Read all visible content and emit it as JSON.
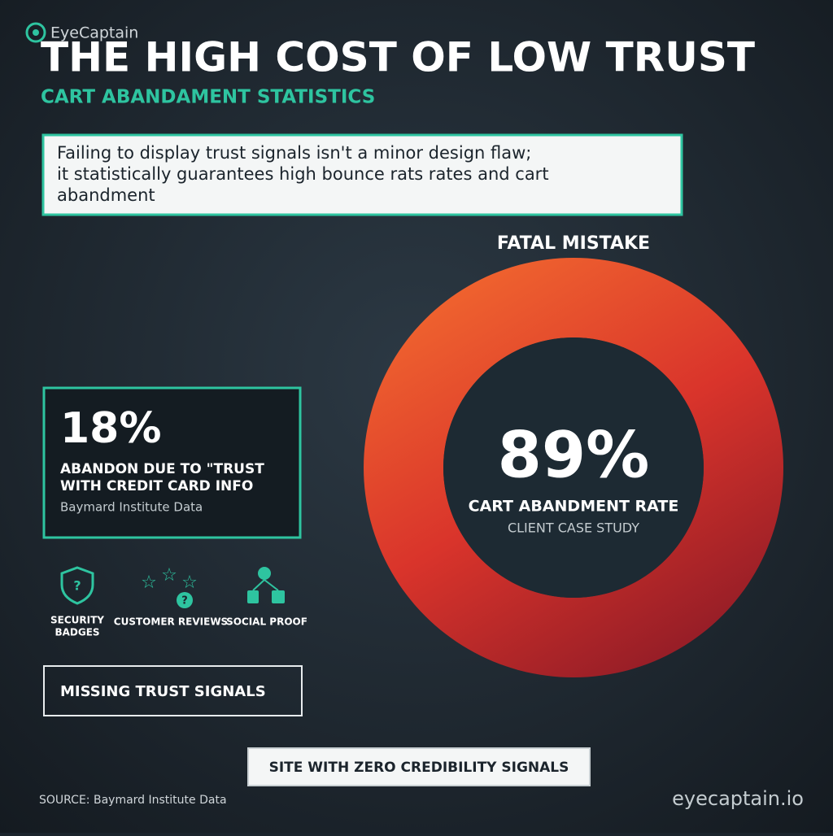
{
  "logo": "EyeCaptain",
  "header": {
    "title": "THE HIGH COST OF LOW TRUST",
    "subtitle": "CART ABANDAMENT STATISTICS"
  },
  "quote": {
    "lines": [
      "Failing to display trust signals isn't a minor design flaw;",
      "it statistically guarantees high bounce rats rates and cart",
      "abandment"
    ]
  },
  "donut": {
    "heading": "FATAL MISTAKE",
    "value": "89%",
    "label": "CART ABANDMENT RATE",
    "note": "CLIENT CASE STUDY"
  },
  "stat": {
    "value": "18%",
    "lines": [
      "ABANDON DUE TO \"TRUST",
      "WITH CREDIT CARD INFO"
    ],
    "source": "Baymard Institute Data"
  },
  "icons": [
    {
      "lines": [
        "SECURITY",
        "BADGES"
      ]
    },
    {
      "lines": [
        "CUSTOMER REVIEWS"
      ]
    },
    {
      "lines": [
        "SOCIAL PROOF"
      ]
    }
  ],
  "missing": "MISSING TRUST SIGNALS",
  "site": "SITE WITH ZERO CREDIBILITY SIGNALS",
  "footer": {
    "source": "SOURCE: Baymard Institute Data",
    "domain": "eyecaptain.io"
  }
}
